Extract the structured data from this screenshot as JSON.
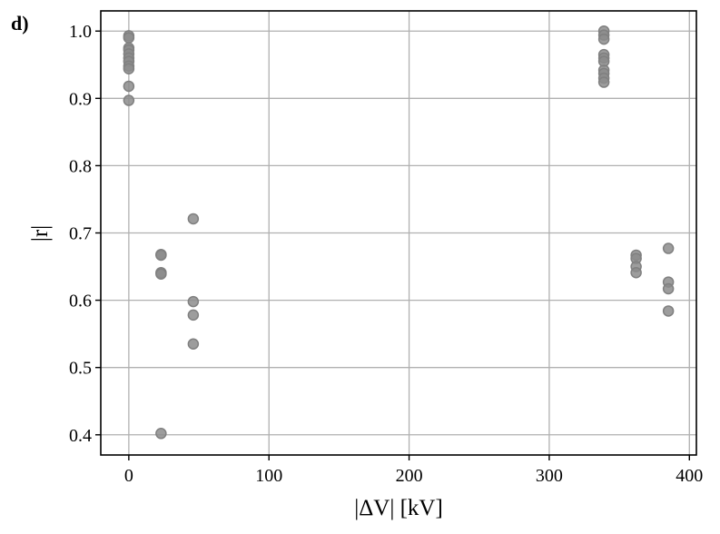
{
  "panel_label": "d)",
  "chart_data": {
    "type": "scatter",
    "title": "",
    "xlabel": "|ΔV| [kV]",
    "ylabel": "|r|",
    "xlim": [
      -20,
      405
    ],
    "ylim": [
      0.37,
      1.03
    ],
    "x_ticks": [
      0,
      100,
      200,
      300,
      400
    ],
    "y_ticks": [
      0.4,
      0.5,
      0.6,
      0.7,
      0.8,
      0.9,
      1.0
    ],
    "grid": true,
    "point_color": "#8c8c8c",
    "points": [
      {
        "x": 0,
        "y": 0.993
      },
      {
        "x": 0,
        "y": 0.99
      },
      {
        "x": 0,
        "y": 0.975
      },
      {
        "x": 0,
        "y": 0.972
      },
      {
        "x": 0,
        "y": 0.966
      },
      {
        "x": 0,
        "y": 0.96
      },
      {
        "x": 0,
        "y": 0.955
      },
      {
        "x": 0,
        "y": 0.948
      },
      {
        "x": 0,
        "y": 0.944
      },
      {
        "x": 0,
        "y": 0.918
      },
      {
        "x": 0,
        "y": 0.897
      },
      {
        "x": 23,
        "y": 0.668
      },
      {
        "x": 23,
        "y": 0.667
      },
      {
        "x": 23,
        "y": 0.641
      },
      {
        "x": 23,
        "y": 0.639
      },
      {
        "x": 23,
        "y": 0.402
      },
      {
        "x": 46,
        "y": 0.721
      },
      {
        "x": 46,
        "y": 0.598
      },
      {
        "x": 46,
        "y": 0.578
      },
      {
        "x": 46,
        "y": 0.535
      },
      {
        "x": 339,
        "y": 1.0
      },
      {
        "x": 339,
        "y": 0.994
      },
      {
        "x": 339,
        "y": 0.988
      },
      {
        "x": 339,
        "y": 0.965
      },
      {
        "x": 339,
        "y": 0.96
      },
      {
        "x": 339,
        "y": 0.955
      },
      {
        "x": 339,
        "y": 0.942
      },
      {
        "x": 339,
        "y": 0.937
      },
      {
        "x": 339,
        "y": 0.93
      },
      {
        "x": 339,
        "y": 0.924
      },
      {
        "x": 362,
        "y": 0.667
      },
      {
        "x": 362,
        "y": 0.662
      },
      {
        "x": 362,
        "y": 0.65
      },
      {
        "x": 362,
        "y": 0.641
      },
      {
        "x": 385,
        "y": 0.677
      },
      {
        "x": 385,
        "y": 0.627
      },
      {
        "x": 385,
        "y": 0.617
      },
      {
        "x": 385,
        "y": 0.584
      }
    ]
  }
}
